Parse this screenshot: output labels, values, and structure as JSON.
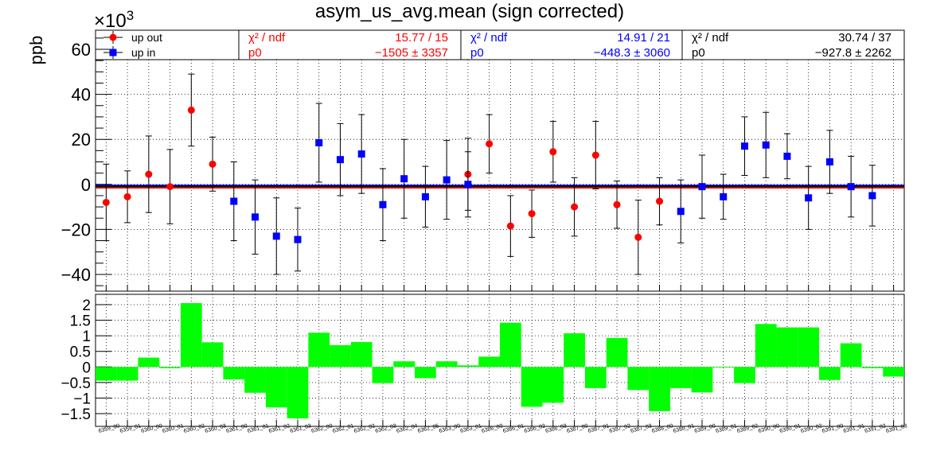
{
  "chart_data": {
    "type": "scatter",
    "title": "asym_us_avg.mean (sign corrected)",
    "ylabel": "ppb",
    "exponent_label": "×10",
    "exponent_power": "3",
    "ylim": [
      -48,
      70
    ],
    "yticks": [
      "60",
      "40",
      "20",
      "0",
      "−20",
      "−40"
    ],
    "ytick_values": [
      60,
      40,
      20,
      0,
      -20,
      -40
    ],
    "grid": true,
    "legend": [
      {
        "label": "up out",
        "color": "#ff0000",
        "marker": "circle"
      },
      {
        "label": "up in",
        "color": "#0000ff",
        "marker": "square"
      }
    ],
    "fit_boxes": [
      {
        "color": "#ff0000",
        "chi_label": "χ² / ndf",
        "chi_value": "15.77 / 15",
        "p_label": "p0",
        "p_value": "−1505 ±  3357"
      },
      {
        "color": "#0000ff",
        "chi_label": "χ² / ndf",
        "chi_value": "14.91 / 21",
        "p_label": "p0",
        "p_value": "−448.3 ±  3060"
      },
      {
        "color": "#000000",
        "chi_label": "χ² / ndf",
        "chi_value": "30.74 / 37",
        "p_label": "p0",
        "p_value": "−927.8 ±  2262"
      }
    ],
    "fits": [
      {
        "color": "#ff0000",
        "value": -1.505
      },
      {
        "color": "#0000ff",
        "value": -0.4483
      },
      {
        "color": "#000000",
        "value": -0.9278
      }
    ],
    "categories": [
      "6359_00",
      "6359_01",
      "6360_00",
      "6360_01",
      "6360_02",
      "6360_03",
      "6361_00",
      "6361_01",
      "6361_02",
      "6361_03",
      "6362_00",
      "6362_01",
      "6362_02",
      "6362_03",
      "6362_04",
      "6362_05",
      "6363_00",
      "6363_01",
      "6386_00",
      "6386_01",
      "6386_02",
      "6386_03",
      "6387_00",
      "6387_01",
      "6387_02",
      "6387_03",
      "6388_00",
      "6388_01",
      "6389_00",
      "6389_01",
      "6389_02",
      "6390_00",
      "6390_01",
      "6390_02",
      "6391_00",
      "6391_01",
      "6391_02",
      "6391_03"
    ],
    "series": [
      {
        "name": "up out",
        "color": "#ff0000",
        "values": [
          -8,
          -5.5,
          4.5,
          -1,
          33,
          9,
          null,
          null,
          null,
          null,
          null,
          null,
          null,
          null,
          null,
          null,
          null,
          4.5,
          18,
          -18.5,
          -13,
          14.5,
          -10,
          13,
          -9,
          -23.5,
          -7.5,
          null,
          null,
          null,
          null,
          null,
          null,
          null,
          null,
          null,
          null,
          null
        ],
        "errors": [
          17,
          11.5,
          17,
          16.5,
          16,
          12,
          null,
          null,
          null,
          null,
          null,
          null,
          null,
          null,
          null,
          null,
          null,
          16,
          13,
          13.5,
          10.5,
          13.5,
          13,
          15,
          10.5,
          16.5,
          10.5,
          null,
          null,
          null,
          null,
          null,
          null,
          null,
          null,
          null,
          null,
          null
        ]
      },
      {
        "name": "up in",
        "color": "#0000ff",
        "values": [
          null,
          null,
          null,
          null,
          null,
          null,
          -7.5,
          -14.5,
          -23,
          -24.5,
          18.5,
          11,
          13.5,
          -9,
          2.5,
          -5.5,
          2,
          0,
          null,
          null,
          null,
          null,
          null,
          null,
          null,
          null,
          null,
          -12,
          -1,
          -5.5,
          17,
          17.5,
          12.5,
          -6,
          10,
          -1,
          -5,
          null
        ],
        "errors": [
          null,
          null,
          null,
          null,
          null,
          null,
          17.5,
          16.5,
          17,
          14,
          17.5,
          16,
          17.5,
          16,
          17.5,
          13.5,
          17.5,
          14.5,
          null,
          null,
          null,
          null,
          null,
          null,
          null,
          null,
          null,
          14,
          14,
          10,
          13,
          14.5,
          10,
          14,
          14,
          13.5,
          13.5,
          null
        ]
      }
    ],
    "residuals": {
      "ylim": [
        -1.75,
        2.25
      ],
      "yticks": [
        "2",
        "1.5",
        "1",
        "0.5",
        "0",
        "−0.5",
        "−1",
        "−1.5"
      ],
      "ytick_values": [
        2,
        1.5,
        1,
        0.5,
        0,
        -0.5,
        -1,
        -1.5
      ],
      "values": [
        -0.44,
        -0.44,
        0.3,
        -0.04,
        2.05,
        0.79,
        -0.4,
        -0.83,
        -1.3,
        -1.65,
        1.1,
        0.7,
        0.8,
        -0.52,
        0.18,
        -0.36,
        0.18,
        0.05,
        0.33,
        1.42,
        -1.28,
        -1.15,
        1.08,
        -0.68,
        0.93,
        -0.74,
        -1.42,
        -0.68,
        -0.82,
        -0.01,
        -0.52,
        1.38,
        1.27,
        1.27,
        -0.42,
        0.76,
        -0.04,
        -0.31
      ],
      "color": "#00ff00"
    }
  }
}
